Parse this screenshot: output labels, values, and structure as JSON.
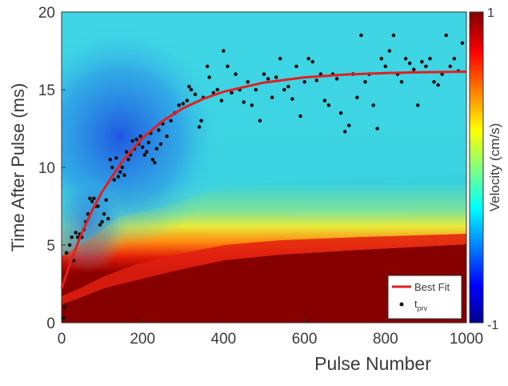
{
  "chart_data": {
    "type": "scatter",
    "xlabel": "Pulse Number",
    "ylabel": "Time After Pulse (ms)",
    "xlim": [
      0,
      1000
    ],
    "xticks": [
      0,
      200,
      400,
      600,
      800,
      1000
    ],
    "ylim": [
      0,
      20
    ],
    "yticks": [
      0,
      5,
      10,
      15,
      20
    ],
    "legend": "lower right",
    "colorbar": {
      "label": "Velocity (cm/s)",
      "lim": [
        -1,
        1
      ],
      "ticks": [
        -1,
        1
      ]
    },
    "series": [
      {
        "name": "Best Fit",
        "kind": "line",
        "color": "#e02020",
        "x": [
          0,
          25,
          50,
          75,
          100,
          150,
          200,
          250,
          300,
          350,
          400,
          500,
          600,
          700,
          800,
          900,
          1000
        ],
        "values": [
          2.2,
          4.12,
          5.77,
          7.2,
          8.43,
          10.4,
          11.89,
          12.99,
          13.81,
          14.41,
          14.87,
          15.46,
          15.79,
          15.97,
          16.07,
          16.13,
          16.16
        ]
      },
      {
        "name": "t",
        "name_subscript": "prv",
        "kind": "scatter",
        "color": "#111111",
        "x": [
          5,
          8,
          12,
          20,
          25,
          30,
          35,
          40,
          45,
          50,
          55,
          60,
          65,
          70,
          75,
          80,
          85,
          90,
          95,
          100,
          105,
          110,
          115,
          120,
          125,
          130,
          135,
          140,
          145,
          150,
          155,
          160,
          165,
          170,
          175,
          180,
          185,
          190,
          195,
          200,
          205,
          210,
          215,
          220,
          225,
          230,
          235,
          240,
          245,
          250,
          260,
          270,
          280,
          290,
          300,
          310,
          315,
          320,
          330,
          340,
          345,
          350,
          360,
          365,
          375,
          385,
          395,
          400,
          410,
          420,
          430,
          440,
          450,
          460,
          470,
          480,
          490,
          500,
          510,
          520,
          530,
          540,
          550,
          560,
          570,
          580,
          590,
          600,
          610,
          620,
          630,
          640,
          650,
          660,
          670,
          680,
          690,
          700,
          710,
          720,
          730,
          740,
          750,
          760,
          770,
          780,
          790,
          800,
          810,
          820,
          830,
          840,
          850,
          860,
          870,
          880,
          890,
          900,
          910,
          920,
          930,
          940,
          950,
          960,
          970,
          980,
          990
        ],
        "values": [
          0.3,
          1,
          4.5,
          5,
          5.5,
          4,
          5.8,
          5.5,
          5.7,
          5.5,
          6,
          6.5,
          7,
          8,
          7.8,
          8,
          7.5,
          7.5,
          6.3,
          6.5,
          7,
          7.9,
          6.7,
          10.5,
          10,
          9.2,
          10.6,
          9.4,
          9.7,
          10,
          9.5,
          11,
          10.5,
          10.8,
          11.7,
          11.2,
          11.8,
          11.5,
          12,
          11.3,
          10.8,
          11,
          11.6,
          12.2,
          10.5,
          10.3,
          11.2,
          12.4,
          11.5,
          12.8,
          12,
          13,
          13.5,
          14,
          14.1,
          14.3,
          15.2,
          15,
          14.7,
          12.6,
          13,
          14.5,
          16.5,
          15.8,
          14.8,
          15,
          14.3,
          17.5,
          16.5,
          14.8,
          16,
          15,
          14.2,
          15.5,
          14,
          15,
          13,
          16,
          15.7,
          14.5,
          15.8,
          17,
          15,
          15.2,
          14.4,
          16.5,
          13.3,
          15.5,
          17,
          16.8,
          15.6,
          16,
          14.3,
          14,
          16,
          15.7,
          13.5,
          12.3,
          12.7,
          16,
          14.5,
          18.5,
          15.5,
          16,
          14,
          12.5,
          17,
          16.5,
          17.5,
          18.5,
          16,
          15.5,
          17,
          16.7,
          16.3,
          14,
          16.8,
          16.5,
          17,
          15.5,
          15.3,
          16,
          18.5,
          16.5,
          17,
          16.2,
          18
        ]
      }
    ]
  }
}
